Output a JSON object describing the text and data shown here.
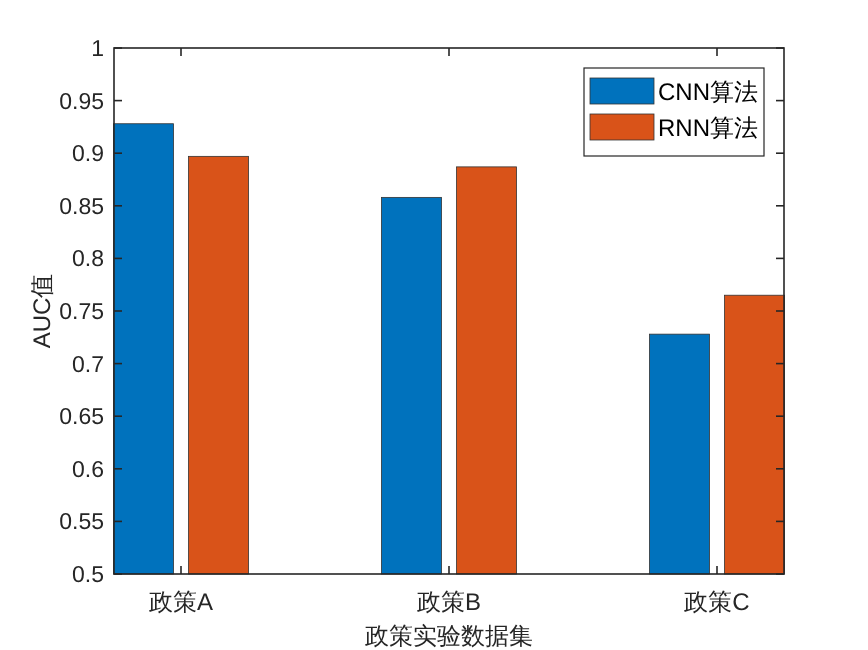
{
  "chart_data": {
    "type": "bar",
    "xlabel": "政策实验数据集",
    "ylabel": "AUC值",
    "categories": [
      "政策A",
      "政策B",
      "政策C"
    ],
    "series": [
      {
        "name": "CNN算法",
        "color": "#0072bd",
        "values": [
          0.928,
          0.858,
          0.728
        ]
      },
      {
        "name": "RNN算法",
        "color": "#d95319",
        "values": [
          0.897,
          0.887,
          0.765
        ]
      }
    ],
    "ylim": [
      0.5,
      1
    ],
    "yticks": [
      0.5,
      0.55,
      0.6,
      0.65,
      0.7,
      0.75,
      0.8,
      0.85,
      0.9,
      0.95,
      1
    ],
    "grid": false,
    "legend": "top right"
  }
}
